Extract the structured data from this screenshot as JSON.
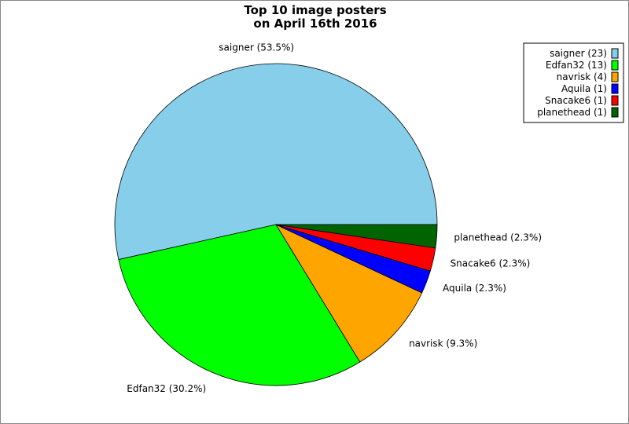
{
  "chart_data": {
    "type": "pie",
    "title": [
      "Top 10 image posters",
      "on April 16th 2016"
    ],
    "slices": [
      {
        "name": "saigner",
        "value": 23,
        "label": "saigner (53.5%)",
        "legend": "saigner (23)",
        "color": "#87ceeb"
      },
      {
        "name": "Edfan32",
        "value": 13,
        "label": "Edfan32 (30.2%)",
        "legend": "Edfan32 (13)",
        "color": "#00ff00"
      },
      {
        "name": "navrisk",
        "value": 4,
        "label": "navrisk (9.3%)",
        "legend": "navrisk (4)",
        "color": "#ffa500"
      },
      {
        "name": "Aquila",
        "value": 1,
        "label": "Aquila (2.3%)",
        "legend": "Aquila (1)",
        "color": "#0000ff"
      },
      {
        "name": "Snacake6",
        "value": 1,
        "label": "Snacake6 (2.3%)",
        "legend": "Snacake6 (1)",
        "color": "#ff0000"
      },
      {
        "name": "planethead",
        "value": 1,
        "label": "planethead (2.3%)",
        "legend": "planethead (1)",
        "color": "#006400"
      }
    ],
    "legend_position": "top-right",
    "start_angle_deg": 0,
    "direction": "counterclockwise"
  }
}
